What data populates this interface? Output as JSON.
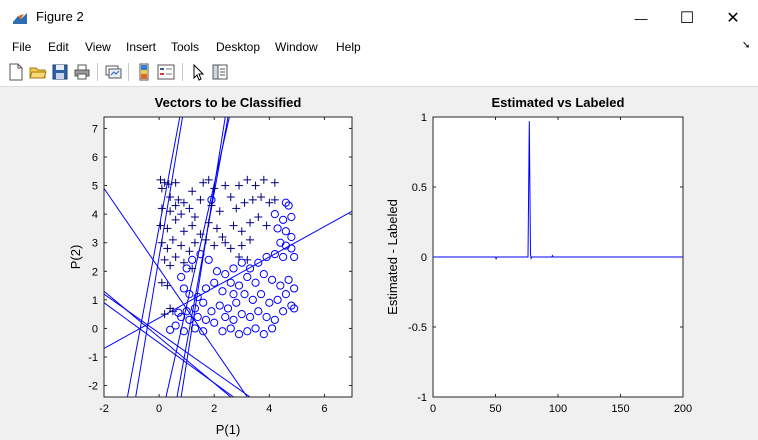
{
  "window": {
    "title": "Figure 2",
    "minimize_glyph": "—",
    "maximize_glyph": "☐",
    "close_glyph": "✕"
  },
  "menu": [
    "File",
    "Edit",
    "View",
    "Insert",
    "Tools",
    "Desktop",
    "Window",
    "Help"
  ],
  "dock_arrow": "➘",
  "toolbar_icons": [
    "new-figure-icon",
    "open-file-icon",
    "save-icon",
    "print-icon",
    "link-plot-icon",
    "insert-colorbar-icon",
    "insert-legend-icon",
    "edit-plot-arrow-icon",
    "property-inspector-icon"
  ],
  "colors": {
    "series": "#0000ff",
    "figure_bg": "#f0f0f0"
  },
  "chart_data": [
    {
      "type": "scatter",
      "title": "Vectors to be Classified",
      "xlabel": "P(1)",
      "ylabel": "P(2)",
      "xlim": [
        -2,
        7
      ],
      "ylim": [
        -2.4,
        7.4
      ],
      "xticks": [
        -2,
        0,
        2,
        4,
        6
      ],
      "yticks": [
        -2,
        -1,
        0,
        1,
        2,
        3,
        4,
        5,
        6,
        7
      ],
      "series": [
        {
          "marker": "+",
          "points": [
            [
              0.05,
              5.2
            ],
            [
              0.2,
              5.1
            ],
            [
              0.35,
              5.05
            ],
            [
              0.6,
              5.1
            ],
            [
              0.1,
              4.9
            ],
            [
              0.4,
              4.6
            ],
            [
              0.7,
              4.5
            ],
            [
              0.9,
              4.4
            ],
            [
              1.2,
              4.8
            ],
            [
              1.6,
              5.1
            ],
            [
              1.8,
              5.2
            ],
            [
              2.0,
              4.9
            ],
            [
              2.4,
              5.0
            ],
            [
              2.9,
              5.0
            ],
            [
              3.2,
              5.2
            ],
            [
              3.5,
              5.0
            ],
            [
              3.8,
              5.2
            ],
            [
              4.2,
              5.1
            ],
            [
              0.1,
              4.2
            ],
            [
              0.4,
              4.1
            ],
            [
              0.6,
              4.3
            ],
            [
              0.8,
              4.0
            ],
            [
              1.1,
              4.2
            ],
            [
              1.3,
              3.9
            ],
            [
              1.5,
              4.5
            ],
            [
              1.9,
              4.3
            ],
            [
              2.2,
              4.1
            ],
            [
              2.6,
              4.6
            ],
            [
              2.8,
              4.2
            ],
            [
              3.1,
              4.4
            ],
            [
              3.4,
              4.5
            ],
            [
              3.7,
              4.6
            ],
            [
              4.0,
              4.4
            ],
            [
              4.2,
              4.5
            ],
            [
              0.05,
              3.6
            ],
            [
              0.3,
              3.5
            ],
            [
              0.6,
              3.8
            ],
            [
              0.9,
              3.4
            ],
            [
              1.2,
              3.6
            ],
            [
              1.5,
              3.3
            ],
            [
              1.8,
              3.7
            ],
            [
              2.1,
              3.5
            ],
            [
              2.3,
              3.2
            ],
            [
              2.7,
              3.6
            ],
            [
              3.0,
              3.4
            ],
            [
              3.3,
              3.7
            ],
            [
              3.6,
              3.9
            ],
            [
              3.9,
              3.6
            ],
            [
              0.1,
              3.0
            ],
            [
              0.3,
              2.8
            ],
            [
              0.5,
              3.1
            ],
            [
              0.8,
              2.9
            ],
            [
              1.1,
              2.7
            ],
            [
              1.3,
              3.0
            ],
            [
              1.7,
              3.1
            ],
            [
              2.0,
              2.9
            ],
            [
              2.4,
              3.0
            ],
            [
              2.6,
              2.8
            ],
            [
              3.0,
              2.9
            ],
            [
              3.3,
              3.1
            ],
            [
              0.2,
              2.4
            ],
            [
              0.4,
              2.2
            ],
            [
              0.6,
              2.5
            ],
            [
              0.9,
              2.3
            ],
            [
              1.2,
              2.1
            ],
            [
              2.9,
              2.5
            ],
            [
              3.2,
              2.4
            ],
            [
              0.1,
              1.6
            ],
            [
              0.3,
              1.5
            ],
            [
              0.2,
              0.5
            ],
            [
              0.4,
              0.7
            ],
            [
              0.5,
              0.6
            ]
          ]
        },
        {
          "marker": "o",
          "points": [
            [
              4.6,
              4.4
            ],
            [
              4.7,
              4.3
            ],
            [
              4.2,
              4.0
            ],
            [
              4.5,
              3.8
            ],
            [
              4.8,
              3.9
            ],
            [
              4.3,
              3.5
            ],
            [
              4.6,
              3.4
            ],
            [
              4.8,
              3.2
            ],
            [
              4.4,
              3.0
            ],
            [
              4.6,
              2.9
            ],
            [
              4.8,
              2.8
            ],
            [
              4.2,
              2.6
            ],
            [
              4.5,
              2.5
            ],
            [
              4.9,
              2.5
            ],
            [
              3.9,
              2.5
            ],
            [
              3.6,
              2.3
            ],
            [
              3.3,
              2.1
            ],
            [
              3.0,
              2.3
            ],
            [
              2.7,
              2.1
            ],
            [
              2.4,
              1.9
            ],
            [
              2.1,
              2.0
            ],
            [
              1.8,
              2.4
            ],
            [
              1.5,
              2.6
            ],
            [
              1.2,
              2.4
            ],
            [
              1.0,
              2.1
            ],
            [
              0.8,
              1.8
            ],
            [
              0.9,
              1.4
            ],
            [
              1.1,
              1.2
            ],
            [
              1.4,
              1.1
            ],
            [
              1.7,
              1.4
            ],
            [
              2.0,
              1.6
            ],
            [
              2.3,
              1.3
            ],
            [
              2.6,
              1.6
            ],
            [
              2.9,
              1.5
            ],
            [
              3.2,
              1.8
            ],
            [
              3.5,
              1.6
            ],
            [
              3.8,
              1.9
            ],
            [
              4.1,
              1.7
            ],
            [
              4.4,
              1.5
            ],
            [
              4.7,
              1.7
            ],
            [
              4.9,
              1.4
            ],
            [
              4.6,
              1.2
            ],
            [
              4.3,
              1.0
            ],
            [
              4.0,
              0.9
            ],
            [
              3.7,
              1.2
            ],
            [
              3.4,
              1.0
            ],
            [
              3.1,
              1.2
            ],
            [
              2.8,
              0.9
            ],
            [
              2.5,
              0.7
            ],
            [
              2.2,
              0.8
            ],
            [
              1.9,
              0.6
            ],
            [
              1.6,
              0.9
            ],
            [
              1.3,
              0.7
            ],
            [
              1.0,
              0.6
            ],
            [
              0.8,
              0.4
            ],
            [
              1.1,
              0.3
            ],
            [
              1.4,
              0.4
            ],
            [
              1.7,
              0.3
            ],
            [
              2.0,
              0.2
            ],
            [
              2.4,
              0.4
            ],
            [
              2.7,
              0.3
            ],
            [
              3.0,
              0.5
            ],
            [
              3.3,
              0.4
            ],
            [
              3.6,
              0.6
            ],
            [
              3.9,
              0.4
            ],
            [
              4.2,
              0.3
            ],
            [
              4.5,
              0.6
            ],
            [
              4.8,
              0.8
            ],
            [
              4.1,
              0.0
            ],
            [
              3.8,
              -0.2
            ],
            [
              3.5,
              0.0
            ],
            [
              3.2,
              -0.1
            ],
            [
              2.9,
              -0.2
            ],
            [
              2.6,
              0.0
            ],
            [
              2.3,
              -0.1
            ],
            [
              1.6,
              -0.1
            ],
            [
              1.3,
              0.0
            ],
            [
              0.9,
              -0.1
            ],
            [
              0.6,
              0.1
            ],
            [
              0.4,
              -0.05
            ],
            [
              0.7,
              0.55
            ],
            [
              1.9,
              4.5
            ],
            [
              2.7,
              1.2
            ],
            [
              4.9,
              0.7
            ]
          ]
        }
      ],
      "lines": [
        [
          [
            -1.15,
            -2.4
          ],
          [
            0.75,
            7.4
          ]
        ],
        [
          [
            -0.85,
            -2.4
          ],
          [
            0.85,
            7.4
          ]
        ],
        [
          [
            0.25,
            -2.4
          ],
          [
            2.55,
            7.4
          ]
        ],
        [
          [
            0.65,
            -2.4
          ],
          [
            2.5,
            7.4
          ]
        ],
        [
          [
            0.8,
            -2.4
          ],
          [
            2.4,
            7.4
          ]
        ],
        [
          [
            -2,
            -0.7
          ],
          [
            7,
            4.1
          ]
        ],
        [
          [
            -2,
            4.9
          ],
          [
            3.2,
            -2.4
          ]
        ],
        [
          [
            -2,
            1.2
          ],
          [
            3.3,
            -2.4
          ]
        ],
        [
          [
            -2,
            1.3
          ],
          [
            2.6,
            -2.4
          ]
        ],
        [
          [
            -2,
            0.9
          ],
          [
            2.7,
            -2.4
          ]
        ]
      ]
    },
    {
      "type": "line",
      "title": "Estimated vs Labeled",
      "xlabel": "",
      "ylabel": "Estimated - Labeled",
      "xlim": [
        0,
        200
      ],
      "ylim": [
        -1,
        1
      ],
      "xticks": [
        0,
        50,
        100,
        150,
        200
      ],
      "yticks": [
        -1,
        -0.5,
        0,
        0.5,
        1
      ],
      "ytick_labels": [
        "-1",
        "-0.5",
        "0",
        "0.5",
        "1"
      ],
      "x": [
        0,
        50,
        50.5,
        51,
        75,
        76,
        77,
        78,
        78.5,
        79,
        95,
        95.5,
        96,
        200
      ],
      "y": [
        0,
        0,
        -0.012,
        0,
        0,
        0,
        0.97,
        0.02,
        -0.01,
        0,
        0,
        0.01,
        0,
        0
      ]
    }
  ]
}
